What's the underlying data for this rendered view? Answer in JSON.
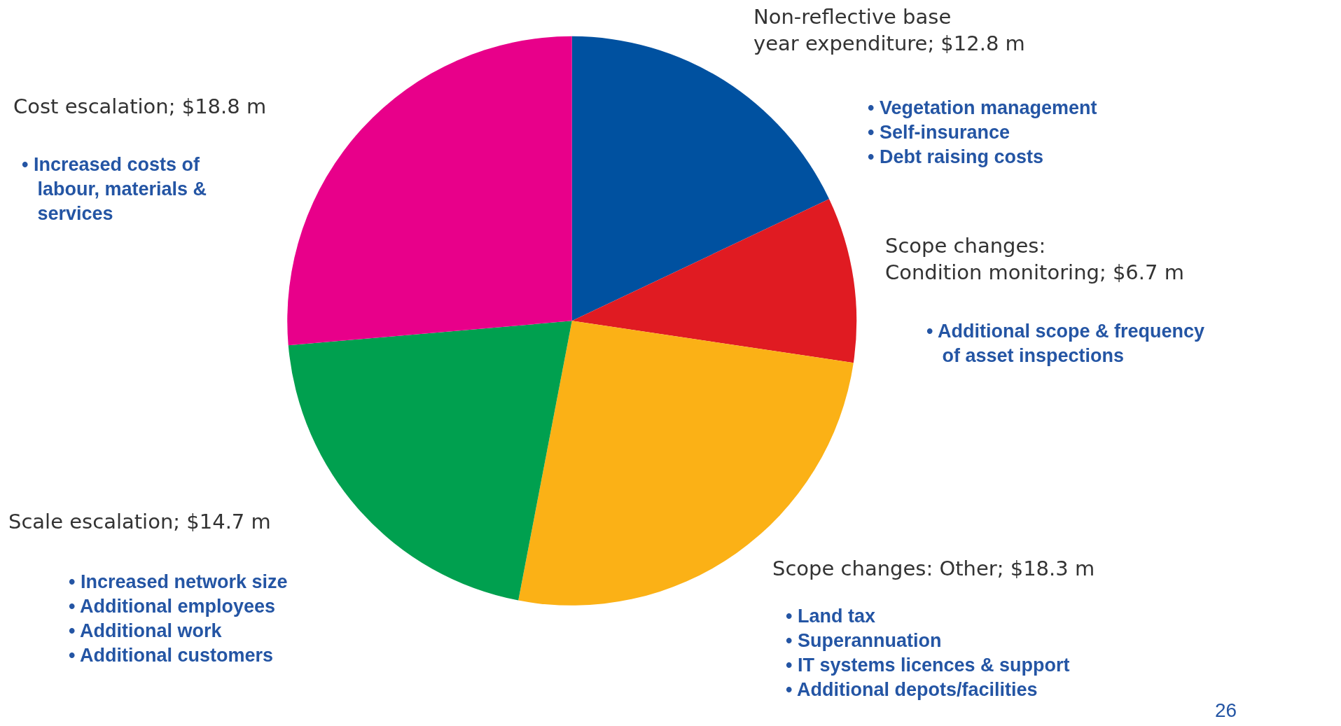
{
  "chart_data": {
    "type": "pie",
    "categories": [
      "Non-reflective base\nyear expenditure; $12.8 m",
      "Scope changes:\nCondition monitoring; $6.7 m",
      "Scope changes: Other; $18.3 m",
      "Scale escalation; $14.7 m",
      "Cost escalation; $18.8 m"
    ],
    "values": [
      12.8,
      6.7,
      18.3,
      14.7,
      18.8
    ],
    "colors": [
      "#0051a0",
      "#e01b22",
      "#fbb116",
      "#00a04f",
      "#e8008a"
    ],
    "annotations": [
      "• Vegetation management\n• Self-insurance\n• Debt raising costs",
      "• Additional scope & frequency\n   of asset inspections",
      "• Land tax\n• Superannuation\n• IT systems licences & support\n• Additional depots/facilities",
      "• Increased network size\n• Additional employees\n• Additional work\n• Additional customers",
      "• Increased costs of\n   labour, materials &\n   services",
      "26"
    ],
    "legend": false
  }
}
